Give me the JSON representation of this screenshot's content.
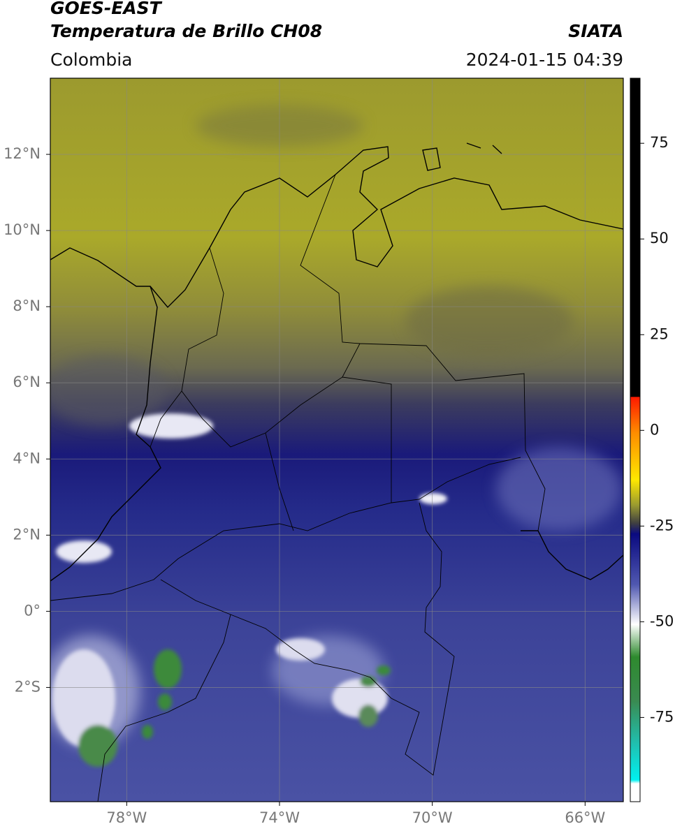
{
  "header": {
    "title": "GOES-EAST",
    "subtitle": "Temperatura de Brillo CH08",
    "source": "SIATA",
    "region": "Colombia",
    "timestamp": "2024-01-15 04:39"
  },
  "map": {
    "lon_lim": [
      -80,
      -65
    ],
    "lat_lim": [
      -5,
      14
    ],
    "lon_ticks": [
      {
        "value": -78,
        "label": "78°W"
      },
      {
        "value": -74,
        "label": "74°W"
      },
      {
        "value": -70,
        "label": "70°W"
      },
      {
        "value": -66,
        "label": "66°W"
      }
    ],
    "lat_ticks": [
      {
        "value": 12,
        "label": "12°N"
      },
      {
        "value": 10,
        "label": "10°N"
      },
      {
        "value": 8,
        "label": "8°N"
      },
      {
        "value": 6,
        "label": "6°N"
      },
      {
        "value": 4,
        "label": "4°N"
      },
      {
        "value": 2,
        "label": "2°N"
      },
      {
        "value": 0,
        "label": "0°"
      },
      {
        "value": -2,
        "label": "2°S"
      }
    ]
  },
  "colorbar": {
    "lim": [
      -97,
      92
    ],
    "ticks": [
      75,
      50,
      25,
      0,
      -25,
      -50,
      -75
    ]
  }
}
